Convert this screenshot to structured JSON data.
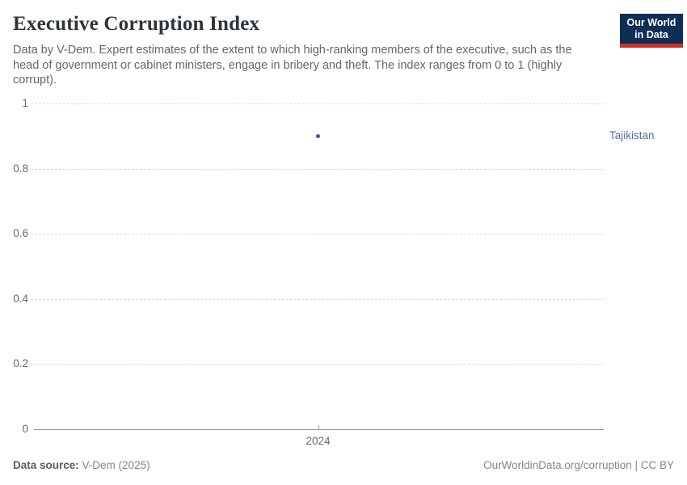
{
  "header": {
    "title": "Executive Corruption Index",
    "subtitle": "Data by V-Dem. Expert estimates of the extent to which high-ranking members of the executive, such as the head of government or cabinet ministers, engage in bribery and theft. The index ranges from 0 to 1 (highly corrupt)."
  },
  "logo": {
    "line1": "Our World",
    "line2": "in Data",
    "bg_color": "#0d2e55",
    "accent_color": "#cf3229"
  },
  "chart_data": {
    "type": "scatter",
    "title": "Executive Corruption Index",
    "x": [
      2024
    ],
    "series": [
      {
        "name": "Tajikistan",
        "values": [
          0.9
        ],
        "point_color": "#3d5e9b",
        "label_color": "#4c6ea9"
      }
    ],
    "xlabel": "",
    "ylabel": "",
    "ylim": [
      0,
      1
    ],
    "yticks": [
      0,
      0.2,
      0.4,
      0.6,
      0.8,
      1
    ],
    "ytick_labels": [
      "0",
      "0.2",
      "0.4",
      "0.6",
      "0.8",
      "1"
    ],
    "xticks": [
      2024
    ],
    "xtick_labels": [
      "2024"
    ],
    "grid": "horizontal-dashed",
    "legend_position": "right-of-plot"
  },
  "footer": {
    "source_label": "Data source:",
    "source_value": "V-Dem (2025)",
    "link": "OurWorldinData.org/corruption | CC BY"
  }
}
